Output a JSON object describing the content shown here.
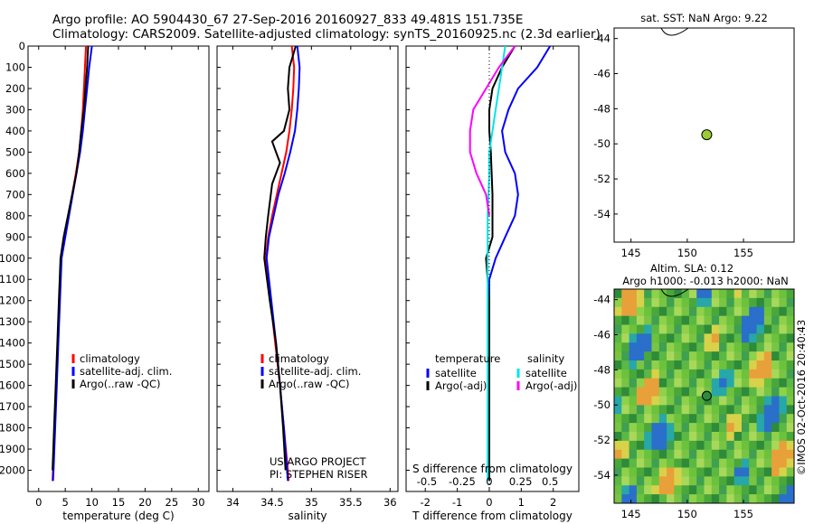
{
  "titles": {
    "line1": "Argo profile: AO 5904430_67 27-Sep-2016 20160927_833 49.481S 151.735E",
    "line2": "Climatology: CARS2009. Satellite-adjusted climatology: synTS_20160925.nc (2.3d earlier)"
  },
  "colors": {
    "climatology": "#ff0000",
    "satellite": "#0000ff",
    "argo": "#000000",
    "cyan": "#00e5e5",
    "magenta": "#ff00ff",
    "float_marker": "#9acd32"
  },
  "chart_data": [
    {
      "id": "temperature",
      "type": "line",
      "xlabel": "temperature (deg C)",
      "ylabel": "",
      "xlim": [
        -2,
        32
      ],
      "ylim": [
        2100,
        0
      ],
      "xticks": [
        0,
        5,
        10,
        15,
        20,
        25,
        30
      ],
      "yticks": [
        0,
        100,
        200,
        300,
        400,
        500,
        600,
        700,
        800,
        900,
        1000,
        1100,
        1200,
        1300,
        1400,
        1500,
        1600,
        1700,
        1800,
        1900,
        2000
      ],
      "legend": [
        "climatology",
        "satellite-adj. clim.",
        "Argo(..raw -QC)"
      ],
      "series": [
        {
          "name": "climatology",
          "color": "#ff0000",
          "points": [
            [
              8.9,
              0
            ],
            [
              8.7,
              100
            ],
            [
              8.5,
              200
            ],
            [
              8.3,
              300
            ],
            [
              8.0,
              400
            ],
            [
              7.6,
              500
            ],
            [
              7.0,
              600
            ],
            [
              6.3,
              700
            ],
            [
              5.6,
              800
            ],
            [
              4.9,
              900
            ],
            [
              4.2,
              1000
            ],
            [
              3.9,
              1200
            ],
            [
              3.6,
              1400
            ],
            [
              3.3,
              1600
            ],
            [
              3.0,
              1800
            ],
            [
              2.7,
              2000
            ],
            [
              2.6,
              2050
            ]
          ]
        },
        {
          "name": "satellite-adj. clim.",
          "color": "#0000ff",
          "points": [
            [
              10.0,
              0
            ],
            [
              9.5,
              100
            ],
            [
              9.1,
              200
            ],
            [
              8.7,
              300
            ],
            [
              8.3,
              400
            ],
            [
              7.8,
              500
            ],
            [
              7.1,
              600
            ],
            [
              6.4,
              700
            ],
            [
              5.7,
              800
            ],
            [
              5.0,
              900
            ],
            [
              4.3,
              1000
            ],
            [
              4.0,
              1200
            ],
            [
              3.7,
              1400
            ],
            [
              3.4,
              1600
            ],
            [
              3.1,
              1800
            ],
            [
              2.8,
              2000
            ],
            [
              2.7,
              2050
            ]
          ]
        },
        {
          "name": "Argo(..raw -QC)",
          "color": "#000000",
          "points": [
            [
              9.3,
              0
            ],
            [
              9.1,
              100
            ],
            [
              8.8,
              200
            ],
            [
              8.5,
              300
            ],
            [
              8.0,
              400
            ],
            [
              7.6,
              500
            ],
            [
              7.1,
              600
            ],
            [
              6.3,
              700
            ],
            [
              5.5,
              800
            ],
            [
              4.7,
              900
            ],
            [
              4.1,
              1000
            ],
            [
              3.8,
              1200
            ],
            [
              3.5,
              1400
            ],
            [
              3.2,
              1600
            ],
            [
              2.9,
              1800
            ],
            [
              2.6,
              2000
            ]
          ]
        }
      ]
    },
    {
      "id": "salinity",
      "type": "line",
      "xlabel": "salinity",
      "ylabel": "",
      "xlim": [
        33.8,
        36.1
      ],
      "ylim": [
        2100,
        0
      ],
      "xticks": [
        34,
        34.5,
        35,
        35.5,
        36
      ],
      "legend": [
        "climatology",
        "satellite-adj. clim.",
        "Argo(..raw -QC)"
      ],
      "annotations": [
        "US ARGO PROJECT",
        "PI: STEPHEN RISER"
      ],
      "series": [
        {
          "name": "climatology",
          "color": "#ff0000",
          "points": [
            [
              34.75,
              0
            ],
            [
              34.78,
              100
            ],
            [
              34.77,
              200
            ],
            [
              34.75,
              300
            ],
            [
              34.72,
              400
            ],
            [
              34.68,
              500
            ],
            [
              34.62,
              600
            ],
            [
              34.56,
              700
            ],
            [
              34.5,
              800
            ],
            [
              34.45,
              900
            ],
            [
              34.42,
              1000
            ],
            [
              34.48,
              1200
            ],
            [
              34.54,
              1400
            ],
            [
              34.6,
              1600
            ],
            [
              34.65,
              1800
            ],
            [
              34.7,
              2000
            ],
            [
              34.71,
              2050
            ]
          ]
        },
        {
          "name": "satellite-adj. clim.",
          "color": "#0000ff",
          "points": [
            [
              34.82,
              0
            ],
            [
              34.85,
              100
            ],
            [
              34.84,
              200
            ],
            [
              34.82,
              300
            ],
            [
              34.79,
              400
            ],
            [
              34.73,
              500
            ],
            [
              34.66,
              600
            ],
            [
              34.58,
              700
            ],
            [
              34.52,
              800
            ],
            [
              34.46,
              900
            ],
            [
              34.43,
              1000
            ],
            [
              34.49,
              1200
            ],
            [
              34.55,
              1400
            ],
            [
              34.6,
              1600
            ],
            [
              34.65,
              1800
            ],
            [
              34.69,
              2000
            ],
            [
              34.7,
              2050
            ]
          ]
        },
        {
          "name": "Argo(..raw -QC)",
          "color": "#000000",
          "points": [
            [
              34.8,
              0
            ],
            [
              34.72,
              100
            ],
            [
              34.7,
              200
            ],
            [
              34.72,
              300
            ],
            [
              34.65,
              400
            ],
            [
              34.5,
              450
            ],
            [
              34.55,
              500
            ],
            [
              34.6,
              550
            ],
            [
              34.5,
              650
            ],
            [
              34.45,
              800
            ],
            [
              34.42,
              900
            ],
            [
              34.4,
              1000
            ],
            [
              34.47,
              1200
            ],
            [
              34.55,
              1400
            ],
            [
              34.6,
              1600
            ],
            [
              34.64,
              1800
            ],
            [
              34.67,
              2000
            ]
          ]
        }
      ]
    },
    {
      "id": "differences",
      "type": "line",
      "xlabel": "T difference from climatology",
      "x2label": "S difference from climatology",
      "xlim": [
        -2.6,
        2.8
      ],
      "ylim": [
        2100,
        0
      ],
      "xticks": [
        -2,
        -1,
        0,
        1,
        2
      ],
      "x2ticks": [
        "-0.5",
        "-0.25",
        "0",
        "0.25",
        "0.5"
      ],
      "legend": {
        "temperature_header": "temperature",
        "salinity_header": "salinity",
        "items": [
          "satellite",
          "Argo(-adj)",
          "satellite",
          "Argo(-adj)"
        ]
      },
      "series": [
        {
          "name": "satellite",
          "color": "#0000ff",
          "points": [
            [
              1.9,
              0
            ],
            [
              1.5,
              100
            ],
            [
              0.9,
              200
            ],
            [
              0.6,
              300
            ],
            [
              0.4,
              400
            ],
            [
              0.5,
              500
            ],
            [
              0.8,
              600
            ],
            [
              0.9,
              700
            ],
            [
              0.8,
              800
            ],
            [
              0.5,
              900
            ],
            [
              0.2,
              1000
            ],
            [
              0.0,
              1100
            ],
            [
              0.0,
              2050
            ]
          ]
        },
        {
          "name": "Argo(-adj)",
          "color": "#000000",
          "points": [
            [
              0.8,
              0
            ],
            [
              0.4,
              100
            ],
            [
              0.1,
              200
            ],
            [
              0.0,
              300
            ],
            [
              0.0,
              400
            ],
            [
              0.05,
              500
            ],
            [
              0.1,
              700
            ],
            [
              0.1,
              900
            ],
            [
              -0.1,
              1000
            ],
            [
              0.0,
              1200
            ],
            [
              0.0,
              2050
            ]
          ]
        },
        {
          "name": "satellite",
          "color": "#00e5e5",
          "points": [
            [
              0.5,
              0
            ],
            [
              0.4,
              100
            ],
            [
              0.3,
              200
            ],
            [
              0.2,
              300
            ],
            [
              0.1,
              400
            ],
            [
              0.0,
              500
            ],
            [
              0.0,
              600
            ],
            [
              -0.05,
              800
            ],
            [
              -0.05,
              1000
            ],
            [
              -0.05,
              1500
            ],
            [
              -0.05,
              2050
            ]
          ]
        },
        {
          "name": "Argo(-adj)",
          "color": "#ff00ff",
          "points": [
            [
              0.8,
              0
            ],
            [
              0.3,
              100
            ],
            [
              -0.1,
              200
            ],
            [
              -0.5,
              300
            ],
            [
              -0.6,
              400
            ],
            [
              -0.6,
              500
            ],
            [
              -0.4,
              600
            ],
            [
              -0.1,
              700
            ],
            [
              0.0,
              800
            ]
          ]
        }
      ]
    },
    {
      "id": "sst_map",
      "type": "scatter",
      "title": "sat. SST: NaN Argo: 9.22",
      "xlim": [
        143.5,
        159.5
      ],
      "ylim": [
        -55.6,
        -43.4
      ],
      "xticks": [
        145,
        150,
        155
      ],
      "yticks": [
        -44,
        -46,
        -48,
        -50,
        -52,
        -54
      ],
      "float_position": [
        151.735,
        -49.481
      ]
    },
    {
      "id": "sla_map",
      "type": "heatmap",
      "title": "Altim. SLA: 0.12",
      "subtitle": "Argo h1000: -0.013 h2000: NaN",
      "xlim": [
        143.5,
        159.5
      ],
      "ylim": [
        -55.6,
        -43.4
      ],
      "xticks": [
        145,
        150,
        155
      ],
      "yticks": [
        -44,
        -46,
        -48,
        -50,
        -52,
        -54
      ],
      "float_position": [
        151.735,
        -49.481
      ]
    }
  ],
  "side_note": "©IMOS 02-Oct-2016 20:40:43"
}
